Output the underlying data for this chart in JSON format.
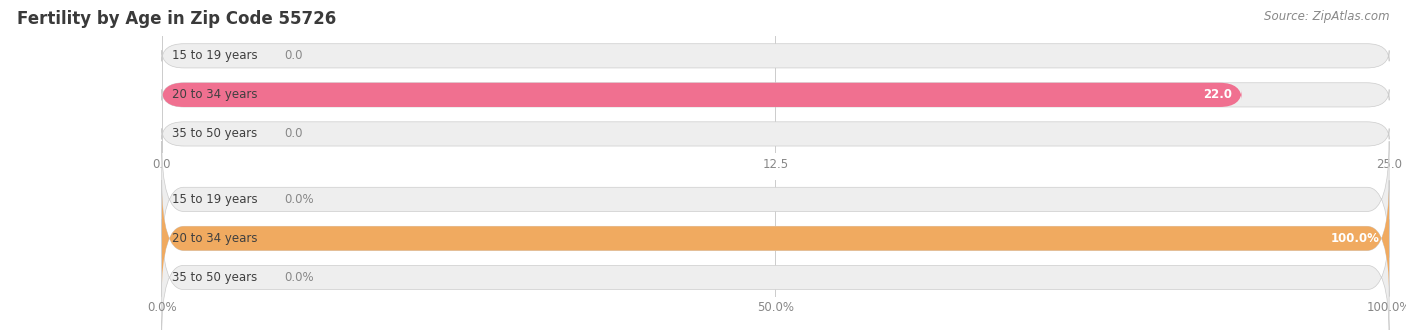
{
  "title": "Fertility by Age in Zip Code 55726",
  "source": "Source: ZipAtlas.com",
  "top_chart": {
    "categories": [
      "15 to 19 years",
      "20 to 34 years",
      "35 to 50 years"
    ],
    "values": [
      0.0,
      22.0,
      0.0
    ],
    "xlim": [
      0,
      25.0
    ],
    "xticks": [
      0.0,
      12.5,
      25.0
    ],
    "xtick_labels": [
      "0.0",
      "12.5",
      "25.0"
    ],
    "bar_color": "#f07090",
    "bar_bg_color": "#eeeeee",
    "value_labels": [
      "0.0",
      "22.0",
      "0.0"
    ]
  },
  "bottom_chart": {
    "categories": [
      "15 to 19 years",
      "20 to 34 years",
      "35 to 50 years"
    ],
    "values": [
      0.0,
      100.0,
      0.0
    ],
    "xlim": [
      0,
      100.0
    ],
    "xticks": [
      0.0,
      50.0,
      100.0
    ],
    "xtick_labels": [
      "0.0%",
      "50.0%",
      "100.0%"
    ],
    "bar_color": "#f0aa60",
    "bar_bg_color": "#eeeeee",
    "value_labels": [
      "0.0%",
      "100.0%",
      "0.0%"
    ]
  },
  "bg_color": "#ffffff",
  "title_color": "#3a3a3a",
  "source_color": "#888888",
  "title_fontsize": 12,
  "source_fontsize": 8.5,
  "tick_fontsize": 8.5,
  "bar_label_fontsize": 8.5,
  "category_label_fontsize": 8.5,
  "grid_color": "#cccccc",
  "bar_edge_color": "#cccccc"
}
